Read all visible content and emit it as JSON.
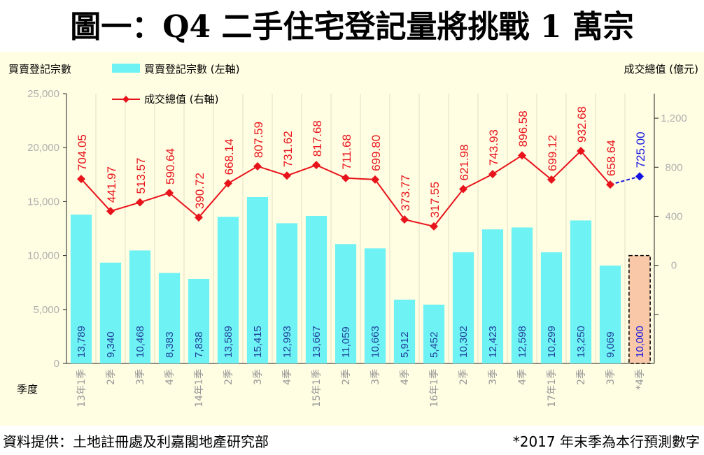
{
  "title": "圖一：Q4 二手住宅登記量將挑戰 1 萬宗",
  "source": "資料提供：土地註冊處及利嘉閣地產研究部",
  "note": "*2017 年末季為本行預測數字",
  "colors": {
    "bar": "#6EF2F4",
    "forecast_bar": "#F8C8A8",
    "line": "#E8141C",
    "forecast_line": "#1414E0",
    "panel": "#FFFDE2"
  },
  "chart_data": {
    "type": "bar",
    "left_axis_title": "買賣登記宗數",
    "right_axis_title": "成交總值 (億元)",
    "x_axis_title": "季度",
    "legend": [
      "買賣登記宗數 (左軸)",
      "成交總值 (右軸)"
    ],
    "categories": [
      "13年1季",
      "2季",
      "3季",
      "4季",
      "14年1季",
      "2季",
      "3季",
      "4季",
      "15年1季",
      "2季",
      "3季",
      "4季",
      "16年1季",
      "2季",
      "3季",
      "4季",
      "17年1季",
      "2季",
      "3季",
      "*4季"
    ],
    "series": [
      {
        "name": "買賣登記宗數 (左軸)",
        "axis": "left",
        "type": "bar",
        "values": [
          13789,
          9340,
          10468,
          8383,
          7838,
          13589,
          15415,
          12993,
          13667,
          11059,
          10663,
          5912,
          5452,
          10302,
          12423,
          12598,
          10299,
          13250,
          9069,
          10000
        ],
        "labels": [
          "13,789",
          "9,340",
          "10,468",
          "8,383",
          "7,838",
          "13,589",
          "15,415",
          "12,993",
          "13,667",
          "11,059",
          "10,663",
          "5,912",
          "5,452",
          "10,302",
          "12,423",
          "12,598",
          "10,299",
          "13,250",
          "9,069",
          "10,000"
        ]
      },
      {
        "name": "成交總值 (右軸)",
        "axis": "right",
        "type": "line",
        "values": [
          704.05,
          441.97,
          513.57,
          590.64,
          390.72,
          668.14,
          807.59,
          731.62,
          817.68,
          711.68,
          699.8,
          373.77,
          317.55,
          621.98,
          743.93,
          896.58,
          699.12,
          932.68,
          658.64,
          725.0
        ],
        "labels": [
          "704.05",
          "441.97",
          "513.57",
          "590.64",
          "390.72",
          "668.14",
          "807.59",
          "731.62",
          "817.68",
          "711.68",
          "699.80",
          "373.77",
          "317.55",
          "621.98",
          "743.93",
          "896.58",
          "699.12",
          "932.68",
          "658.64",
          "725.00"
        ]
      }
    ],
    "forecast_index": 19,
    "left_axis": {
      "min": 0,
      "max": 25000,
      "ticks": [
        "0",
        "5,000",
        "10,000",
        "15,000",
        "20,000",
        "25,000"
      ]
    },
    "right_axis": {
      "min": -800,
      "max": 1400,
      "ticks": [
        "0",
        "400",
        "800",
        "1,200"
      ],
      "tick_values": [
        0,
        400,
        800,
        1200
      ]
    }
  }
}
